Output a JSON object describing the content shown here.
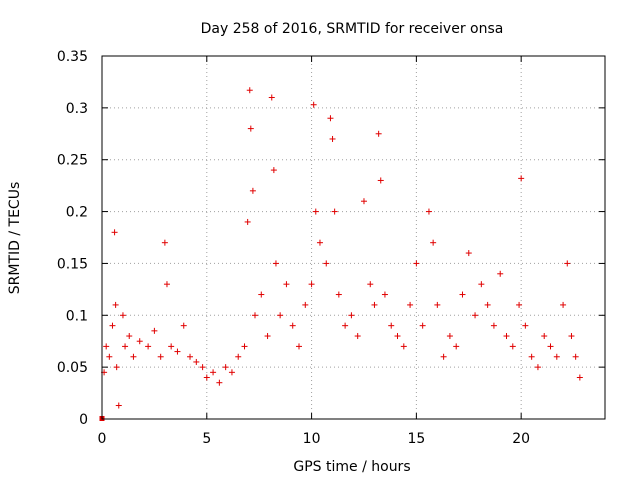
{
  "chart_data": {
    "type": "scatter",
    "title": "Day 258 of 2016, SRMTID for receiver onsa",
    "xlabel": "GPS time / hours",
    "ylabel": "SRMTID / TECUs",
    "xlim": [
      0,
      24
    ],
    "ylim": [
      0,
      0.35
    ],
    "xticks": [
      0,
      5,
      10,
      15,
      20
    ],
    "xtick_labels": [
      "0",
      "5",
      "10",
      "15",
      "20"
    ],
    "yticks": [
      0,
      0.05,
      0.1,
      0.15,
      0.2,
      0.25,
      0.3,
      0.35
    ],
    "ytick_labels": [
      "0",
      "0.05",
      "0.1",
      "0.15",
      "0.2",
      "0.25",
      "0.3",
      "0.35"
    ],
    "grid": true,
    "marker": "+",
    "color": "#e00000",
    "series": [
      {
        "name": "SRMTID",
        "x": [
          0.1,
          0.2,
          0.35,
          0.5,
          0.6,
          0.65,
          0.7,
          0.8,
          1.0,
          1.1,
          1.3,
          1.5,
          1.8,
          2.2,
          2.5,
          2.8,
          3.0,
          3.1,
          3.3,
          3.6,
          3.9,
          4.2,
          4.5,
          4.8,
          5.0,
          5.3,
          5.6,
          5.9,
          6.2,
          6.5,
          6.8,
          6.95,
          7.05,
          7.1,
          7.2,
          7.3,
          7.6,
          7.9,
          8.1,
          8.2,
          8.3,
          8.5,
          8.8,
          9.1,
          9.4,
          9.7,
          10.0,
          10.1,
          10.2,
          10.4,
          10.7,
          10.9,
          11.0,
          11.1,
          11.3,
          11.6,
          11.9,
          12.2,
          12.5,
          12.8,
          13.0,
          13.2,
          13.3,
          13.5,
          13.8,
          14.1,
          14.4,
          14.7,
          15.0,
          15.3,
          15.6,
          15.8,
          16.0,
          16.3,
          16.6,
          16.9,
          17.2,
          17.5,
          17.8,
          18.1,
          18.4,
          18.7,
          19.0,
          19.3,
          19.6,
          19.9,
          20.0,
          20.2,
          20.5,
          20.8,
          21.1,
          21.4,
          21.7,
          22.0,
          22.2,
          22.4,
          22.6,
          22.8
        ],
        "y": [
          0.045,
          0.07,
          0.06,
          0.09,
          0.18,
          0.11,
          0.05,
          0.013,
          0.1,
          0.07,
          0.08,
          0.06,
          0.075,
          0.07,
          0.085,
          0.06,
          0.17,
          0.13,
          0.07,
          0.065,
          0.09,
          0.06,
          0.055,
          0.05,
          0.04,
          0.045,
          0.035,
          0.05,
          0.045,
          0.06,
          0.07,
          0.19,
          0.317,
          0.28,
          0.22,
          0.1,
          0.12,
          0.08,
          0.31,
          0.24,
          0.15,
          0.1,
          0.13,
          0.09,
          0.07,
          0.11,
          0.13,
          0.303,
          0.2,
          0.17,
          0.15,
          0.29,
          0.27,
          0.2,
          0.12,
          0.09,
          0.1,
          0.08,
          0.21,
          0.13,
          0.11,
          0.275,
          0.23,
          0.12,
          0.09,
          0.08,
          0.07,
          0.11,
          0.15,
          0.09,
          0.2,
          0.17,
          0.11,
          0.06,
          0.08,
          0.07,
          0.12,
          0.16,
          0.1,
          0.13,
          0.11,
          0.09,
          0.14,
          0.08,
          0.07,
          0.11,
          0.232,
          0.09,
          0.06,
          0.05,
          0.08,
          0.07,
          0.06,
          0.11,
          0.15,
          0.08,
          0.06,
          0.04
        ]
      }
    ]
  },
  "origin_marker_color": "#e00000"
}
